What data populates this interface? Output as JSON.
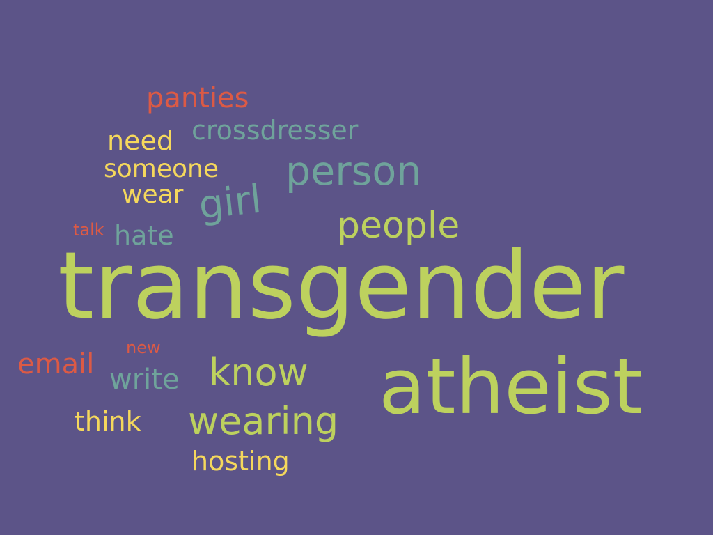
{
  "background": "#5c5488",
  "palette": {
    "green": "#bdd15e",
    "teal": "#6fa39b",
    "yellow": "#f5d85c",
    "red": "#dc5a45"
  },
  "words": [
    {
      "id": "transgender",
      "text": "transgender",
      "color": "green",
      "weight": 1.0
    },
    {
      "id": "atheist",
      "text": "atheist",
      "color": "green",
      "weight": 0.85
    },
    {
      "id": "person",
      "text": "person",
      "color": "teal",
      "weight": 0.45
    },
    {
      "id": "people",
      "text": "people",
      "color": "green",
      "weight": 0.4
    },
    {
      "id": "girl",
      "text": "girl",
      "color": "teal",
      "weight": 0.4
    },
    {
      "id": "know",
      "text": "know",
      "color": "green",
      "weight": 0.42
    },
    {
      "id": "wearing",
      "text": "wearing",
      "color": "green",
      "weight": 0.42
    },
    {
      "id": "crossdresser",
      "text": "crossdresser",
      "color": "teal",
      "weight": 0.28
    },
    {
      "id": "panties",
      "text": "panties",
      "color": "red",
      "weight": 0.3
    },
    {
      "id": "need",
      "text": "need",
      "color": "yellow",
      "weight": 0.28
    },
    {
      "id": "someone",
      "text": "someone",
      "color": "yellow",
      "weight": 0.28
    },
    {
      "id": "wear",
      "text": "wear",
      "color": "yellow",
      "weight": 0.28
    },
    {
      "id": "hate",
      "text": "hate",
      "color": "teal",
      "weight": 0.28
    },
    {
      "id": "talk",
      "text": "talk",
      "color": "red",
      "weight": 0.15
    },
    {
      "id": "email",
      "text": "email",
      "color": "red",
      "weight": 0.28
    },
    {
      "id": "new",
      "text": "new",
      "color": "red",
      "weight": 0.15
    },
    {
      "id": "write",
      "text": "write",
      "color": "teal",
      "weight": 0.28
    },
    {
      "id": "think",
      "text": "think",
      "color": "yellow",
      "weight": 0.28
    },
    {
      "id": "hosting",
      "text": "hosting",
      "color": "yellow",
      "weight": 0.3
    }
  ]
}
